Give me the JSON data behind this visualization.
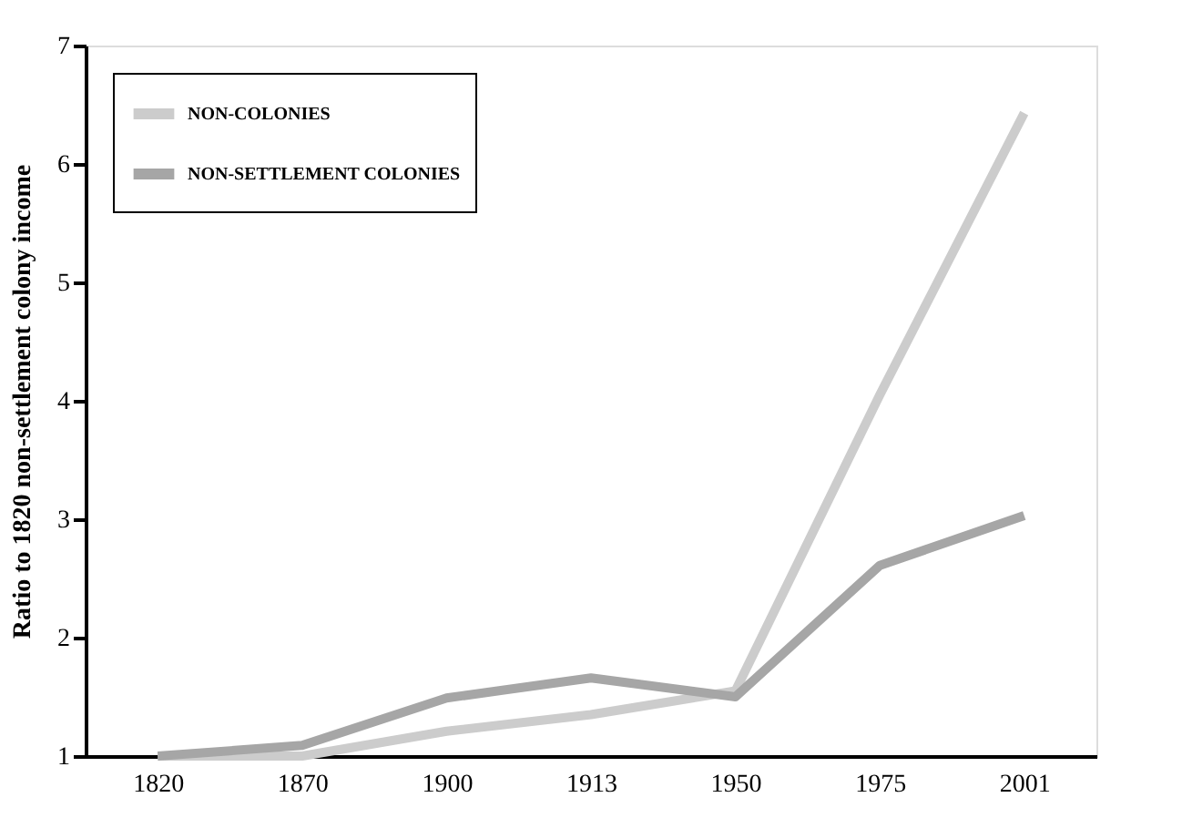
{
  "chart_data": {
    "type": "line",
    "ylabel": "Ratio to 1820 non-settlement colony income",
    "categories": [
      "1820",
      "1870",
      "1900",
      "1913",
      "1950",
      "1975",
      "2001"
    ],
    "series": [
      {
        "name": "NON-COLONIES",
        "color": "#cccccc",
        "values": [
          1.0,
          1.0,
          1.21,
          1.35,
          1.55,
          4.05,
          6.43
        ]
      },
      {
        "name": "NON-SETTLEMENT COLONIES",
        "color": "#a6a6a6",
        "values": [
          1.0,
          1.09,
          1.49,
          1.66,
          1.5,
          2.61,
          3.03
        ]
      }
    ],
    "ylim": [
      1,
      7
    ],
    "yticks": [
      1,
      2,
      3,
      4,
      5,
      6,
      7
    ],
    "grid": false,
    "legend": "top left",
    "marker": "none",
    "line_style": "solid"
  }
}
